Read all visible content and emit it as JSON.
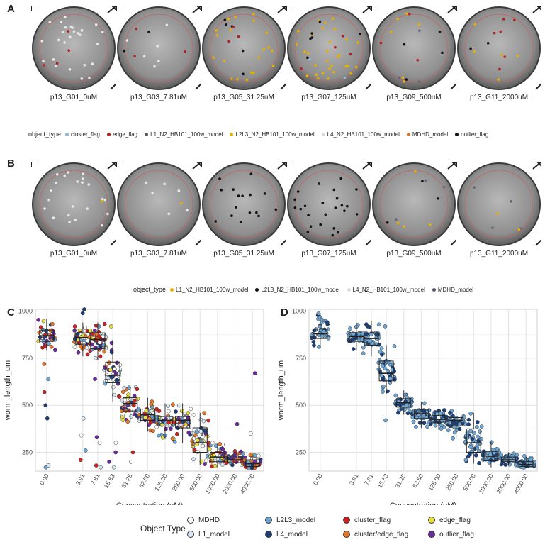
{
  "panels": {
    "a": "A",
    "b": "B",
    "c": "C",
    "d": "D"
  },
  "wells_a": [
    {
      "label": "p13_G01_0uM",
      "dots": [
        [
          "#e8e8e8",
          26
        ],
        [
          "#b22222",
          4
        ]
      ]
    },
    {
      "label": "p13_G03_7.81uM",
      "dots": [
        [
          "#e8e8e8",
          6
        ],
        [
          "#b22222",
          3
        ],
        [
          "#111111",
          2
        ]
      ]
    },
    {
      "label": "p13_G05_31.25uM",
      "dots": [
        [
          "#e5b000",
          20
        ],
        [
          "#111111",
          5
        ],
        [
          "#b22222",
          3
        ]
      ]
    },
    {
      "label": "p13_G07_125uM",
      "dots": [
        [
          "#e5b000",
          30
        ],
        [
          "#111111",
          6
        ],
        [
          "#b22222",
          4
        ],
        [
          "#8fb8d8",
          2
        ]
      ]
    },
    {
      "label": "p13_G09_500uM",
      "dots": [
        [
          "#e5b000",
          6
        ],
        [
          "#111111",
          4
        ],
        [
          "#b22222",
          3
        ],
        [
          "#666677",
          3
        ]
      ]
    },
    {
      "label": "p13_G11_2000uM",
      "dots": [
        [
          "#b22222",
          6
        ],
        [
          "#e5b000",
          5
        ],
        [
          "#111111",
          2
        ]
      ]
    }
  ],
  "wells_b": [
    {
      "label": "p13_G01_0uM",
      "dots": [
        [
          "#e8e8e8",
          22
        ],
        [
          "#e5b000",
          1
        ]
      ]
    },
    {
      "label": "p13_G03_7.81uM",
      "dots": [
        [
          "#e8e8e8",
          6
        ],
        [
          "#e5b000",
          1
        ]
      ]
    },
    {
      "label": "p13_G05_31.25uM",
      "dots": [
        [
          "#111111",
          16
        ]
      ]
    },
    {
      "label": "p13_G07_125uM",
      "dots": [
        [
          "#111111",
          24
        ]
      ]
    },
    {
      "label": "p13_G09_500uM",
      "dots": [
        [
          "#e5b000",
          4
        ],
        [
          "#111111",
          3
        ],
        [
          "#666677",
          3
        ]
      ]
    },
    {
      "label": "p13_G11_2000uM",
      "dots": [
        [
          "#666677",
          4
        ],
        [
          "#e5b000",
          2
        ]
      ]
    }
  ],
  "legend_a": {
    "title": "object_type",
    "items": [
      {
        "label": "cluster_flag",
        "color": "#8fb8d8"
      },
      {
        "label": "edge_flag",
        "color": "#b22222"
      },
      {
        "label": "L1_N2_HB101_100w_model",
        "color": "#555555"
      },
      {
        "label": "L2L3_N2_HB101_100w_model",
        "color": "#e5b000"
      },
      {
        "label": "L4_N2_HB101_100w_model",
        "color": "#dddddd"
      },
      {
        "label": "MDHD_model",
        "color": "#e07020"
      },
      {
        "label": "outlier_flag",
        "color": "#111111"
      }
    ]
  },
  "legend_b": {
    "title": "object_type",
    "items": [
      {
        "label": "L1_N2_HB101_100w_model",
        "color": "#e5b000"
      },
      {
        "label": "L2L3_N2_HB101_100w_model",
        "color": "#111111"
      },
      {
        "label": "L4_N2_HB101_100w_model",
        "color": "#dddddd"
      },
      {
        "label": "MDHD_model",
        "color": "#555566"
      }
    ]
  },
  "chart_data": [
    {
      "type": "box+scatter",
      "panel": "C",
      "xlabel": "Concentration (μM)",
      "ylabel": "worm_length_um",
      "categories": [
        "0.00",
        "3.91",
        "7.81",
        "15.63",
        "31.25",
        "62.50",
        "125.00",
        "250.00",
        "500.00",
        "1000.00",
        "2000.00",
        "4000.00"
      ],
      "positions": [
        0,
        1.45,
        2.05,
        2.65,
        3.35,
        4.05,
        4.75,
        5.45,
        6.15,
        6.85,
        7.55,
        8.25
      ],
      "ylim": [
        150,
        1010
      ],
      "yticks": [
        250,
        500,
        750,
        1000
      ],
      "box": [
        {
          "q1": 840,
          "median": 870,
          "q3": 900,
          "lo": 790,
          "hi": 960
        },
        {
          "q1": 825,
          "median": 860,
          "q3": 885,
          "lo": 760,
          "hi": 940
        },
        {
          "q1": 800,
          "median": 850,
          "q3": 885,
          "lo": 740,
          "hi": 940
        },
        {
          "q1": 620,
          "median": 660,
          "q3": 730,
          "lo": 520,
          "hi": 850
        },
        {
          "q1": 470,
          "median": 510,
          "q3": 540,
          "lo": 410,
          "hi": 600
        },
        {
          "q1": 420,
          "median": 450,
          "q3": 480,
          "lo": 360,
          "hi": 540
        },
        {
          "q1": 390,
          "median": 420,
          "q3": 440,
          "lo": 320,
          "hi": 510
        },
        {
          "q1": 380,
          "median": 420,
          "q3": 440,
          "lo": 300,
          "hi": 510
        },
        {
          "q1": 250,
          "median": 300,
          "q3": 380,
          "lo": 180,
          "hi": 460
        },
        {
          "q1": 200,
          "median": 225,
          "q3": 250,
          "lo": 170,
          "hi": 300
        },
        {
          "q1": 195,
          "median": 210,
          "q3": 230,
          "lo": 170,
          "hi": 270
        },
        {
          "q1": 175,
          "median": 190,
          "q3": 210,
          "lo": 160,
          "hi": 240
        }
      ],
      "outliers": [
        [
          0,
          720
        ],
        [
          0,
          640
        ],
        [
          0,
          570
        ],
        [
          0,
          500
        ],
        [
          0,
          430
        ],
        [
          0,
          180
        ],
        [
          0,
          170
        ],
        [
          1.45,
          1010
        ],
        [
          1.45,
          990
        ],
        [
          1.45,
          430
        ],
        [
          1.45,
          340
        ],
        [
          1.45,
          260
        ],
        [
          1.45,
          210
        ],
        [
          2.05,
          640
        ],
        [
          2.05,
          330
        ],
        [
          2.05,
          300
        ],
        [
          2.05,
          180
        ],
        [
          2.05,
          170
        ],
        [
          2.65,
          920
        ],
        [
          2.65,
          300
        ],
        [
          2.65,
          250
        ],
        [
          2.65,
          200
        ],
        [
          2.65,
          170
        ],
        [
          3.35,
          250
        ],
        [
          3.35,
          200
        ],
        [
          7.55,
          400
        ],
        [
          8.25,
          670
        ],
        [
          8.25,
          350
        ]
      ],
      "series": [
        {
          "name": "MDHD",
          "color": "#ffffff"
        },
        {
          "name": "L1_model",
          "color": "#d6e6f2"
        },
        {
          "name": "L2L3_model",
          "color": "#6fa8d6"
        },
        {
          "name": "L4_model",
          "color": "#1c3f7a"
        },
        {
          "name": "cluster_flag",
          "color": "#cc2222"
        },
        {
          "name": "cluster/edge_flag",
          "color": "#e8772a"
        },
        {
          "name": "edge_flag",
          "color": "#e8e23a"
        },
        {
          "name": "outlier_flag",
          "color": "#6a2a9a"
        }
      ]
    },
    {
      "type": "box+scatter",
      "panel": "D",
      "xlabel": "Concentration (μM)",
      "ylabel": "worm_length_um",
      "categories": [
        "0.00",
        "3.91",
        "7.81",
        "15.63",
        "31.25",
        "62.50",
        "125.00",
        "250.00",
        "500.00",
        "1000.00",
        "2000.00",
        "4000.00"
      ],
      "positions": [
        0,
        1.45,
        2.05,
        2.65,
        3.35,
        4.05,
        4.75,
        5.45,
        6.15,
        6.85,
        7.55,
        8.25
      ],
      "ylim": [
        150,
        1010
      ],
      "yticks": [
        250,
        500,
        750,
        1000
      ],
      "box": [
        {
          "q1": 855,
          "median": 880,
          "q3": 905,
          "lo": 810,
          "hi": 990
        },
        {
          "q1": 840,
          "median": 865,
          "q3": 885,
          "lo": 790,
          "hi": 940
        },
        {
          "q1": 820,
          "median": 855,
          "q3": 885,
          "lo": 760,
          "hi": 950
        },
        {
          "q1": 630,
          "median": 670,
          "q3": 735,
          "lo": 560,
          "hi": 820
        },
        {
          "q1": 490,
          "median": 515,
          "q3": 535,
          "lo": 450,
          "hi": 580
        },
        {
          "q1": 430,
          "median": 455,
          "q3": 475,
          "lo": 380,
          "hi": 520
        },
        {
          "q1": 410,
          "median": 425,
          "q3": 445,
          "lo": 370,
          "hi": 480
        },
        {
          "q1": 390,
          "median": 420,
          "q3": 435,
          "lo": 320,
          "hi": 470
        },
        {
          "q1": 250,
          "median": 300,
          "q3": 375,
          "lo": 190,
          "hi": 460
        },
        {
          "q1": 205,
          "median": 230,
          "q3": 255,
          "lo": 170,
          "hi": 310
        },
        {
          "q1": 200,
          "median": 210,
          "q3": 225,
          "lo": 180,
          "hi": 250
        },
        {
          "q1": 175,
          "median": 185,
          "q3": 200,
          "lo": 165,
          "hi": 225
        }
      ],
      "outliers": [
        [
          2.65,
          920
        ],
        [
          2.65,
          420
        ],
        [
          8.25,
          230
        ]
      ],
      "series": [
        {
          "name": "L2L3_model",
          "color": "#6fa8d6"
        },
        {
          "name": "L4_model",
          "color": "#1c3f7a"
        }
      ]
    }
  ],
  "bottom_legend": {
    "title": "Object Type",
    "items": [
      {
        "label": "MDHD",
        "color": "#ffffff"
      },
      {
        "label": "L1_model",
        "color": "#d6e6f2"
      },
      {
        "label": "L2L3_model",
        "color": "#6fa8d6"
      },
      {
        "label": "L4_model",
        "color": "#1c3f7a"
      },
      {
        "label": "cluster_flag",
        "color": "#cc2222"
      },
      {
        "label": "cluster/edge_flag",
        "color": "#e8772a"
      },
      {
        "label": "edge_flag",
        "color": "#e8e23a"
      },
      {
        "label": "outlier_flag",
        "color": "#6a2a9a"
      }
    ]
  }
}
